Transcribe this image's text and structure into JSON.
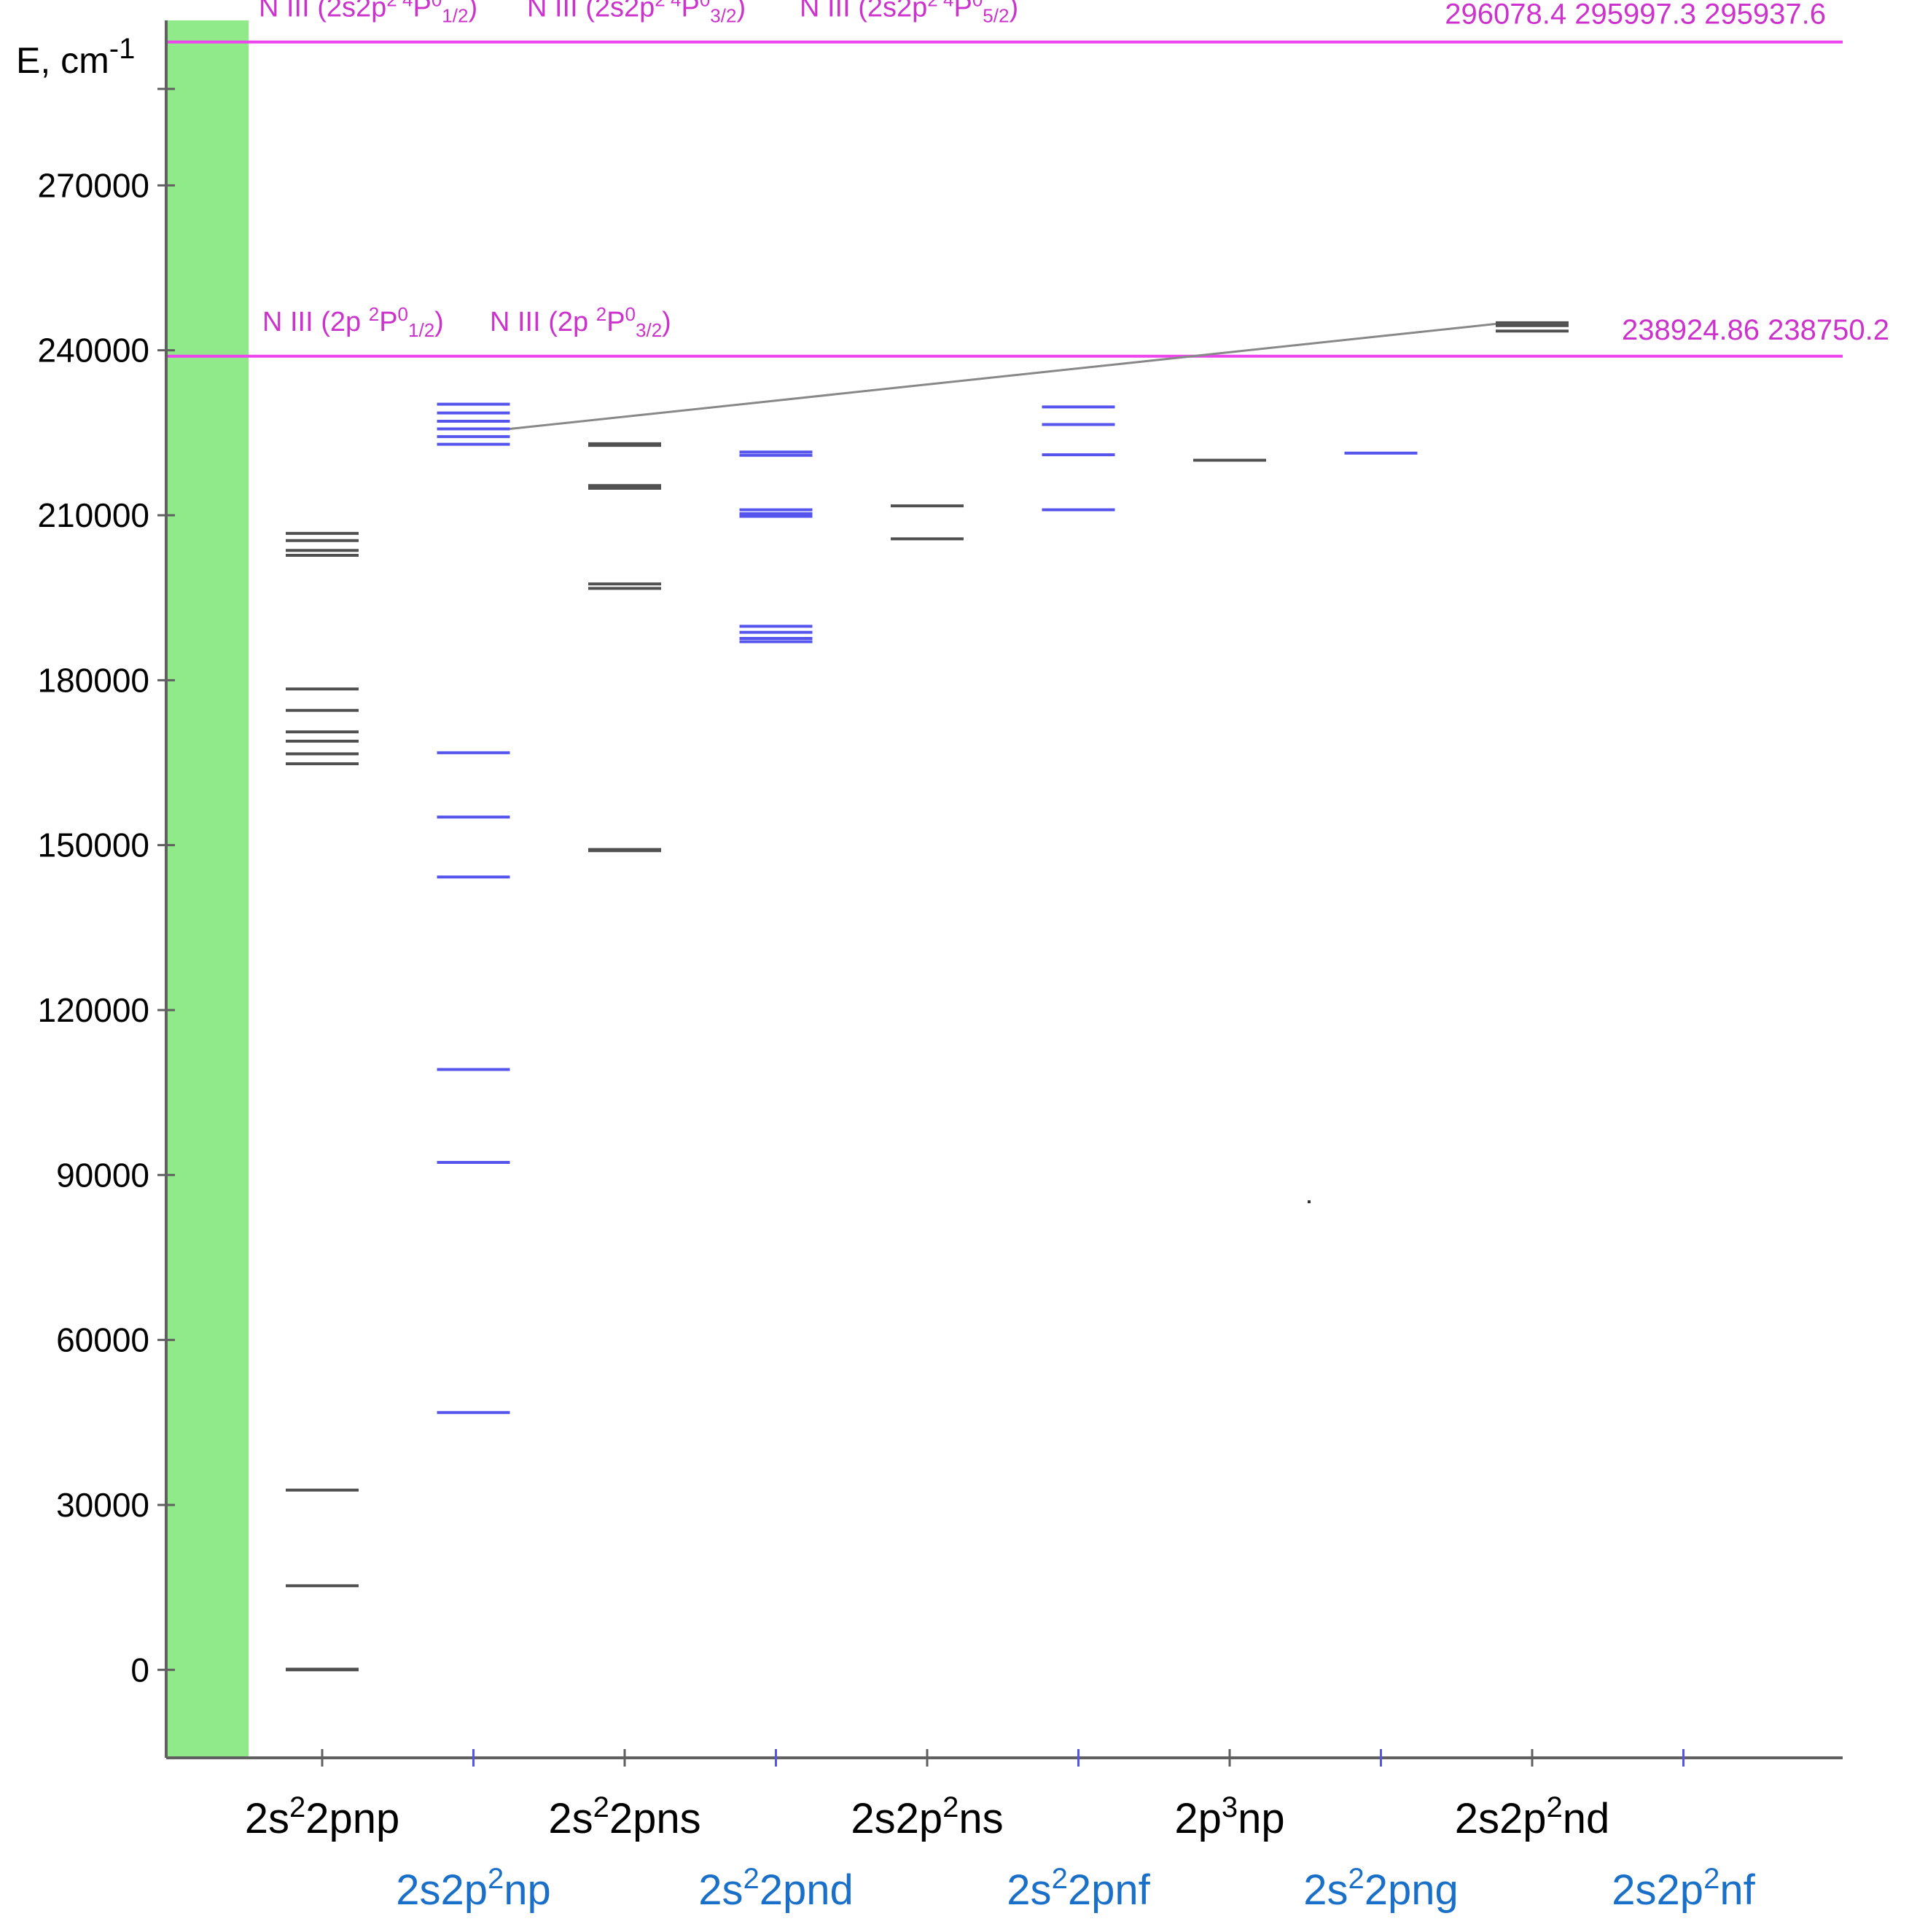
{
  "axis": {
    "y_label_main": "E, cm",
    "y_label_sup": "-1",
    "ticks": [
      "270000",
      "240000",
      "210000",
      "180000",
      "150000",
      "120000",
      "90000",
      "60000",
      "30000",
      "0"
    ],
    "tick_values": [
      270000,
      240000,
      210000,
      180000,
      150000,
      120000,
      90000,
      60000,
      30000,
      0
    ],
    "ymin": -16000,
    "ymax": 300000
  },
  "colors": {
    "band": "#90ea8a",
    "limit": "#ee44ee",
    "limit_text": "#cc33cc",
    "black_levels": "#505050",
    "blue_levels": "#5555ee",
    "blue_label": "#1a70c8",
    "axis": "#606060",
    "connector": "#888888"
  },
  "ionization_limits": [
    {
      "energy": 296078.4,
      "labels": [
        {
          "base": "N III (2s2p",
          "sup1": "2 4",
          "mid": "P",
          "sup2": "0",
          "sub": "1/2",
          "end": ")"
        },
        {
          "base": "N III (2s2p",
          "sup1": "2 4",
          "mid": "P",
          "sup2": "0",
          "sub": "3/2",
          "end": ")"
        },
        {
          "base": "N III (2s2p",
          "sup1": "2 4",
          "mid": "P",
          "sup2": "0",
          "sub": "5/2",
          "end": ")"
        }
      ],
      "values": [
        "296078.4",
        "295997.3",
        "295937.6"
      ]
    },
    {
      "energy": 238924.86,
      "labels": [
        {
          "base": "N III (2p ",
          "sup1": "2",
          "mid": "P",
          "sup2": "0",
          "sub": "1/2",
          "end": ")"
        },
        {
          "base": "N III (2p ",
          "sup1": "2",
          "mid": "P",
          "sup2": "0",
          "sub": "3/2",
          "end": ")"
        }
      ],
      "values": [
        "238924.86",
        "238750.2"
      ]
    }
  ],
  "columns": [
    {
      "pre": "2s",
      "sup": "2",
      "post": "2pnp",
      "color": "black",
      "row": 1,
      "levels": [
        0,
        120,
        15300,
        32700,
        164800,
        166600,
        168900,
        170600,
        174500,
        178400,
        202700,
        203600,
        205400,
        206700
      ]
    },
    {
      "pre": "2s2p",
      "sup": "2",
      "post": "np",
      "color": "blue",
      "row": 2,
      "levels": [
        46800,
        92300,
        109200,
        144200,
        155100,
        166800,
        222900,
        224300,
        225700,
        227100,
        228600,
        230200
      ]
    },
    {
      "pre": "2s",
      "sup": "2",
      "post": "2pns",
      "color": "black",
      "row": 1,
      "levels": [
        149000,
        149200,
        196700,
        197500,
        214900,
        215400,
        222700,
        223000
      ]
    },
    {
      "pre": "2s",
      "sup": "2",
      "post": "2pnd",
      "color": "blue",
      "row": 2,
      "levels": [
        187000,
        187600,
        188700,
        189800,
        209800,
        210300,
        211000,
        220900,
        221500
      ]
    },
    {
      "pre": "2s2p",
      "sup": "2",
      "post": "ns",
      "color": "black",
      "row": 1,
      "levels": [
        205700,
        211700
      ]
    },
    {
      "pre": "2s",
      "sup": "2",
      "post": "2pnf",
      "color": "blue",
      "row": 2,
      "levels": [
        211000,
        221000,
        226500,
        229700
      ]
    },
    {
      "pre": "2p",
      "sup": "3",
      "post": "np",
      "color": "black",
      "row": 1,
      "levels": [
        220000
      ]
    },
    {
      "pre": "2s",
      "sup": "2",
      "post": "2png",
      "color": "blue",
      "row": 2,
      "levels": [
        221300
      ]
    },
    {
      "pre": "2s2p",
      "sup": "2",
      "post": "nd",
      "color": "black",
      "row": 1,
      "levels": [
        243500,
        244500,
        245000
      ]
    },
    {
      "pre": "2s2p",
      "sup": "2",
      "post": "nf",
      "color": "blue",
      "row": 2,
      "levels": []
    }
  ]
}
